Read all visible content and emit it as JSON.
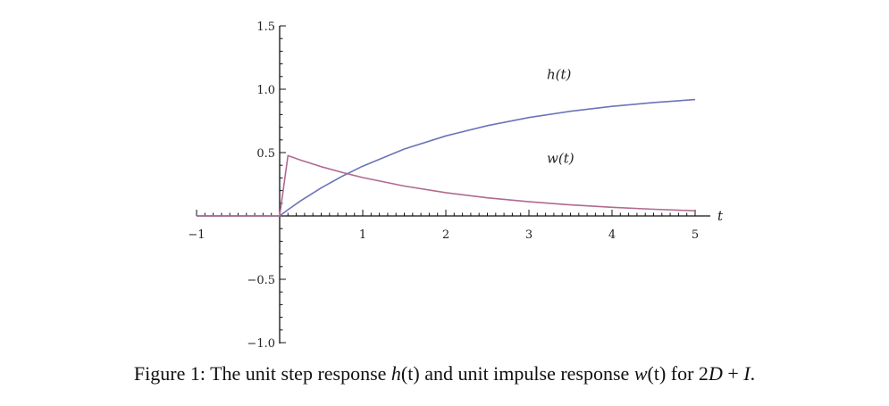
{
  "chart_data": {
    "type": "line",
    "xlabel": "t",
    "ylabel": "",
    "xlim": [
      -1,
      5
    ],
    "ylim": [
      -1.0,
      1.5
    ],
    "x_ticks": [
      {
        "value": -1,
        "label": "−1"
      },
      {
        "value": 1,
        "label": "1"
      },
      {
        "value": 2,
        "label": "2"
      },
      {
        "value": 3,
        "label": "3"
      },
      {
        "value": 4,
        "label": "4"
      },
      {
        "value": 5,
        "label": "5"
      }
    ],
    "y_ticks": [
      {
        "value": 1.5,
        "label": "1.5"
      },
      {
        "value": 1.0,
        "label": "1.0"
      },
      {
        "value": 0.5,
        "label": "0.5"
      },
      {
        "value": -0.5,
        "label": "−0.5"
      },
      {
        "value": -1.0,
        "label": "−1.0"
      }
    ],
    "grid": false,
    "series": [
      {
        "name": "h(t)",
        "color": "#6b74b8",
        "x": [
          -1,
          0,
          0.1,
          0.25,
          0.5,
          0.75,
          1,
          1.5,
          2,
          2.5,
          3,
          3.5,
          4,
          4.5,
          5
        ],
        "y": [
          0,
          0,
          0.049,
          0.118,
          0.221,
          0.313,
          0.393,
          0.528,
          0.632,
          0.713,
          0.777,
          0.826,
          0.865,
          0.895,
          0.918
        ]
      },
      {
        "name": "w(t)",
        "color": "#b06a8e",
        "x": [
          -1,
          0,
          0.1,
          0.25,
          0.5,
          0.75,
          1,
          1.5,
          2,
          2.5,
          3,
          3.5,
          4,
          4.5,
          5
        ],
        "y": [
          0,
          0,
          0.476,
          0.441,
          0.389,
          0.344,
          0.303,
          0.236,
          0.184,
          0.143,
          0.112,
          0.087,
          0.068,
          0.053,
          0.041
        ]
      }
    ]
  },
  "caption": {
    "prefix": "Figure 1: The unit step response ",
    "h_sym": "h",
    "h_arg": "(t)",
    "middle": " and unit impulse response ",
    "w_sym": "w",
    "w_arg": "(t)",
    "for_text": " for 2",
    "D_sym": "D",
    "plus": " + ",
    "I_sym": "I",
    "end": "."
  }
}
